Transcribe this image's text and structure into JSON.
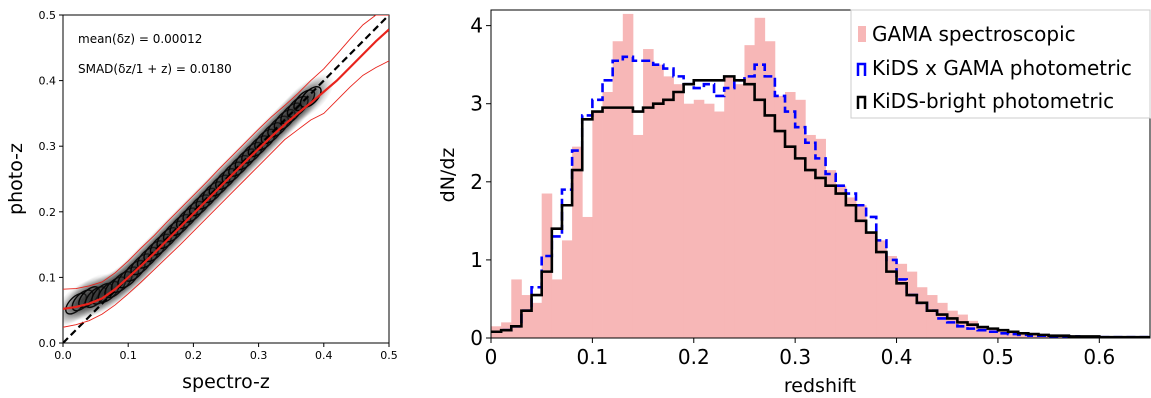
{
  "chart_data": [
    {
      "type": "scatter",
      "title": "",
      "xlabel": "spectro-z",
      "ylabel": "photo-z",
      "xlim": [
        0.0,
        0.5
      ],
      "ylim": [
        0.0,
        0.5
      ],
      "xticks": [
        "0.0",
        "0.1",
        "0.2",
        "0.3",
        "0.4",
        "0.5"
      ],
      "yticks": [
        "0.0",
        "0.1",
        "0.2",
        "0.3",
        "0.4",
        "0.5"
      ],
      "annotations": [
        "mean(δz) = 0.00012",
        "SMAD(δz/1 + z) = 0.0180"
      ],
      "grid": false,
      "density_points": {
        "x": [
          0.02,
          0.03,
          0.04,
          0.05,
          0.06,
          0.07,
          0.08,
          0.09,
          0.1,
          0.11,
          0.12,
          0.13,
          0.14,
          0.15,
          0.16,
          0.17,
          0.18,
          0.19,
          0.2,
          0.21,
          0.22,
          0.23,
          0.24,
          0.25,
          0.26,
          0.27,
          0.28,
          0.29,
          0.3,
          0.31,
          0.32,
          0.33,
          0.34,
          0.35,
          0.36,
          0.37,
          0.38
        ],
        "y": [
          0.06,
          0.065,
          0.07,
          0.07,
          0.075,
          0.078,
          0.085,
          0.093,
          0.1,
          0.11,
          0.12,
          0.13,
          0.14,
          0.15,
          0.16,
          0.17,
          0.18,
          0.19,
          0.2,
          0.21,
          0.22,
          0.23,
          0.24,
          0.25,
          0.26,
          0.27,
          0.28,
          0.29,
          0.3,
          0.31,
          0.32,
          0.33,
          0.34,
          0.35,
          0.36,
          0.37,
          0.375
        ]
      },
      "series": [
        {
          "kind": "one-to-one",
          "color": "#000000",
          "style": "dashed",
          "x": [
            0.0,
            0.5
          ],
          "y": [
            0.0,
            0.5
          ]
        },
        {
          "kind": "running-median",
          "color": "#e8231c",
          "style": "solid",
          "x": [
            0.0,
            0.02,
            0.04,
            0.06,
            0.08,
            0.1,
            0.12,
            0.14,
            0.16,
            0.18,
            0.2,
            0.22,
            0.24,
            0.26,
            0.28,
            0.3,
            0.32,
            0.34,
            0.36,
            0.38,
            0.4,
            0.42,
            0.44,
            0.46,
            0.48,
            0.5
          ],
          "y": [
            0.052,
            0.055,
            0.06,
            0.068,
            0.082,
            0.1,
            0.118,
            0.137,
            0.157,
            0.177,
            0.197,
            0.217,
            0.237,
            0.257,
            0.277,
            0.296,
            0.315,
            0.333,
            0.35,
            0.366,
            0.383,
            0.4,
            0.42,
            0.44,
            0.46,
            0.478
          ]
        },
        {
          "kind": "upper-scatter",
          "color": "#e8231c",
          "style": "thin",
          "x": [
            0.0,
            0.02,
            0.04,
            0.06,
            0.08,
            0.1,
            0.12,
            0.14,
            0.16,
            0.18,
            0.2,
            0.22,
            0.24,
            0.26,
            0.28,
            0.3,
            0.32,
            0.34,
            0.36,
            0.38,
            0.4,
            0.42,
            0.44,
            0.46,
            0.48,
            0.5
          ],
          "y": [
            0.082,
            0.083,
            0.087,
            0.093,
            0.107,
            0.125,
            0.145,
            0.164,
            0.185,
            0.205,
            0.225,
            0.245,
            0.266,
            0.286,
            0.306,
            0.326,
            0.345,
            0.362,
            0.38,
            0.4,
            0.418,
            0.44,
            0.463,
            0.485,
            0.5,
            0.5
          ]
        },
        {
          "kind": "lower-scatter",
          "color": "#e8231c",
          "style": "thin",
          "x": [
            0.0,
            0.02,
            0.04,
            0.06,
            0.08,
            0.1,
            0.12,
            0.14,
            0.16,
            0.18,
            0.2,
            0.22,
            0.24,
            0.26,
            0.28,
            0.3,
            0.32,
            0.34,
            0.36,
            0.38,
            0.4,
            0.42,
            0.44,
            0.46,
            0.48,
            0.5
          ],
          "y": [
            0.024,
            0.028,
            0.034,
            0.044,
            0.058,
            0.075,
            0.093,
            0.112,
            0.131,
            0.15,
            0.17,
            0.19,
            0.21,
            0.23,
            0.25,
            0.27,
            0.29,
            0.31,
            0.325,
            0.34,
            0.35,
            0.37,
            0.39,
            0.408,
            0.42,
            0.43
          ]
        }
      ]
    },
    {
      "type": "bar",
      "title": "",
      "xlabel": "redshift",
      "ylabel": "dN/dz",
      "xlim": [
        0.0,
        0.65
      ],
      "ylim": [
        0.0,
        4.2
      ],
      "xticks": [
        "0",
        "0.1",
        "0.2",
        "0.3",
        "0.4",
        "0.5",
        "0.6"
      ],
      "yticks": [
        "0",
        "1",
        "2",
        "3",
        "4"
      ],
      "grid": false,
      "legend_position": "top-right",
      "legend": [
        {
          "label": "GAMA spectroscopic",
          "color": "#f7b7b7",
          "style": "fill"
        },
        {
          "label": "KiDS x GAMA photometric",
          "color": "#0000ff",
          "style": "dashed-step"
        },
        {
          "label": "KiDS-bright photometric",
          "color": "#000000",
          "style": "solid-step"
        }
      ],
      "bin_width": 0.01,
      "x": [
        0.0,
        0.01,
        0.02,
        0.03,
        0.04,
        0.05,
        0.06,
        0.07,
        0.08,
        0.09,
        0.1,
        0.11,
        0.12,
        0.13,
        0.14,
        0.15,
        0.16,
        0.17,
        0.18,
        0.19,
        0.2,
        0.21,
        0.22,
        0.23,
        0.24,
        0.25,
        0.26,
        0.27,
        0.28,
        0.29,
        0.3,
        0.31,
        0.32,
        0.33,
        0.34,
        0.35,
        0.36,
        0.37,
        0.38,
        0.39,
        0.4,
        0.41,
        0.42,
        0.43,
        0.44,
        0.45,
        0.46,
        0.47,
        0.48,
        0.49,
        0.5,
        0.51,
        0.52,
        0.53,
        0.54,
        0.55,
        0.56,
        0.57,
        0.58,
        0.59,
        0.6,
        0.61,
        0.62,
        0.63,
        0.64
      ],
      "series": [
        {
          "name": "GAMA spectroscopic",
          "values": [
            0.15,
            0.2,
            0.75,
            0.55,
            0.45,
            1.85,
            0.75,
            1.25,
            2.45,
            1.55,
            2.9,
            3.15,
            3.8,
            4.15,
            2.6,
            3.7,
            3.5,
            3.35,
            3.25,
            3.0,
            3.05,
            3.0,
            2.9,
            3.35,
            3.25,
            3.75,
            4.1,
            3.8,
            3.1,
            3.15,
            3.05,
            2.6,
            2.55,
            2.15,
            1.95,
            1.8,
            1.7,
            1.35,
            1.25,
            1.05,
            0.95,
            0.85,
            0.65,
            0.55,
            0.45,
            0.35,
            0.3,
            0.22,
            0.15,
            0.12,
            0.1,
            0.08,
            0.06,
            0.05,
            0.04,
            0.03,
            0.03,
            0.02,
            0.02,
            0.01,
            0.01,
            0.01,
            0.01,
            0.01,
            0.01
          ]
        },
        {
          "name": "KiDS x GAMA photometric",
          "values": [
            0.08,
            0.1,
            0.15,
            0.35,
            0.65,
            1.05,
            1.3,
            1.9,
            2.4,
            2.85,
            3.05,
            3.3,
            3.55,
            3.6,
            3.55,
            3.55,
            3.5,
            3.45,
            3.35,
            3.25,
            3.2,
            3.25,
            3.1,
            3.2,
            3.3,
            3.35,
            3.5,
            3.35,
            3.1,
            2.9,
            2.7,
            2.5,
            2.3,
            2.1,
            1.95,
            1.85,
            1.7,
            1.55,
            1.25,
            1.0,
            0.75,
            0.55,
            0.45,
            0.35,
            0.25,
            0.2,
            0.15,
            0.12,
            0.1,
            0.08,
            0.06,
            0.05,
            0.04,
            0.03,
            0.03,
            0.02,
            0.02,
            0.02,
            0.01,
            0.01,
            0.01,
            0.01,
            0.01,
            0.01,
            0.01
          ]
        },
        {
          "name": "KiDS-bright photometric",
          "values": [
            0.08,
            0.1,
            0.15,
            0.35,
            0.55,
            0.85,
            1.4,
            1.7,
            2.15,
            2.8,
            2.9,
            2.95,
            2.95,
            2.95,
            2.9,
            2.95,
            3.0,
            3.05,
            3.15,
            3.25,
            3.3,
            3.3,
            3.3,
            3.35,
            3.3,
            3.25,
            3.05,
            2.85,
            2.65,
            2.45,
            2.3,
            2.15,
            2.05,
            1.95,
            1.85,
            1.7,
            1.5,
            1.35,
            1.1,
            0.85,
            0.7,
            0.55,
            0.45,
            0.35,
            0.3,
            0.25,
            0.2,
            0.17,
            0.14,
            0.12,
            0.1,
            0.08,
            0.06,
            0.05,
            0.04,
            0.03,
            0.03,
            0.02,
            0.02,
            0.02,
            0.01,
            0.01,
            0.01,
            0.01,
            0.01
          ]
        }
      ]
    }
  ]
}
